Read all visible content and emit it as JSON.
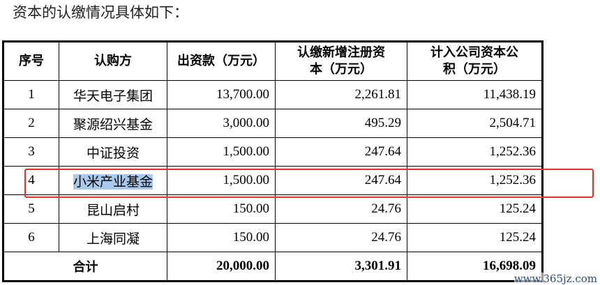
{
  "intro": "资本的认缴情况具体如下：",
  "table": {
    "headers": [
      "序号",
      "认购方",
      "出资款（万元）",
      "认缴新增注册资本（万元）",
      "计入公司资本公积（万元）"
    ],
    "rows": [
      [
        "1",
        "华天电子集团",
        "13,700.00",
        "2,261.81",
        "11,438.19"
      ],
      [
        "2",
        "聚源绍兴基金",
        "3,000.00",
        "495.29",
        "2,504.71"
      ],
      [
        "3",
        "中证投资",
        "1,500.00",
        "247.64",
        "1,252.36"
      ],
      [
        "4",
        "小米产业基金",
        "1,500.00",
        "247.64",
        "1,252.36"
      ],
      [
        "5",
        "昆山启村",
        "150.00",
        "24.76",
        "125.24"
      ],
      [
        "6",
        "上海同凝",
        "150.00",
        "24.76",
        "125.24"
      ]
    ],
    "total": {
      "label": "合计",
      "values": [
        "20,000.00",
        "3,301.91",
        "16,698.09"
      ]
    },
    "highlighted_row": 4
  },
  "colors": {
    "highlight_box": "#e8302a",
    "text_selection": "#a9c9ea"
  },
  "watermark": "www.365jz.com"
}
